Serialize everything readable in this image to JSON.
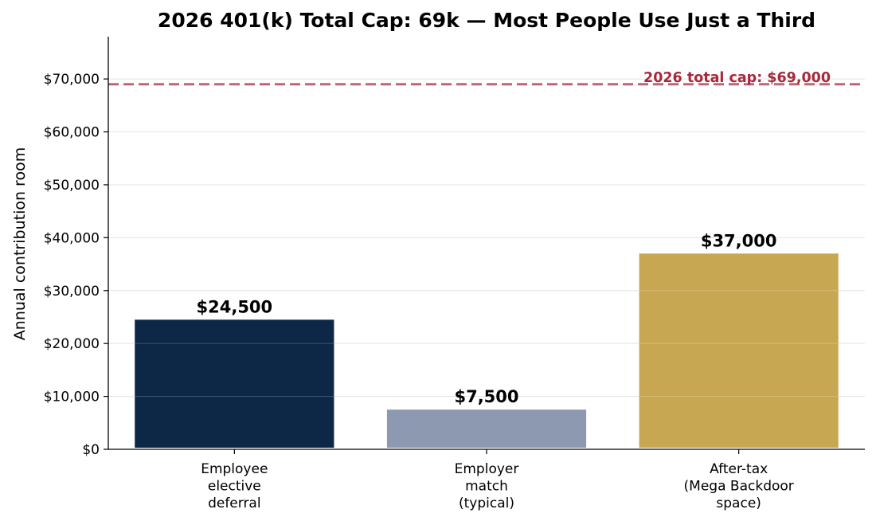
{
  "chart_data": {
    "type": "bar",
    "title": "2026 401(k) Total Cap: 69k — Most People Use Just a Third",
    "xlabel": "",
    "ylabel": "Annual contribution room",
    "categories": [
      [
        "Employee",
        "elective",
        "deferral"
      ],
      [
        "Employer",
        "match",
        "(typical)"
      ],
      [
        "After-tax",
        "(Mega Backdoor",
        "space)"
      ]
    ],
    "values": [
      24500,
      7500,
      37000
    ],
    "data_labels": [
      "$24,500",
      "$7,500",
      "$37,000"
    ],
    "bar_colors": [
      "#0d2747",
      "#8d99b0",
      "#c8a752"
    ],
    "ylim": [
      0,
      78000
    ],
    "yticks": [
      0,
      10000,
      20000,
      30000,
      40000,
      50000,
      60000,
      70000
    ],
    "ytick_labels": [
      "$0",
      "$10,000",
      "$20,000",
      "$30,000",
      "$40,000",
      "$50,000",
      "$60,000",
      "$70,000"
    ],
    "grid": "horizontal",
    "reference_line": {
      "value": 69000,
      "label": "2026 total cap: $69,000",
      "color": "#c06473",
      "label_color": "#a8283c",
      "style": "dashed"
    }
  }
}
